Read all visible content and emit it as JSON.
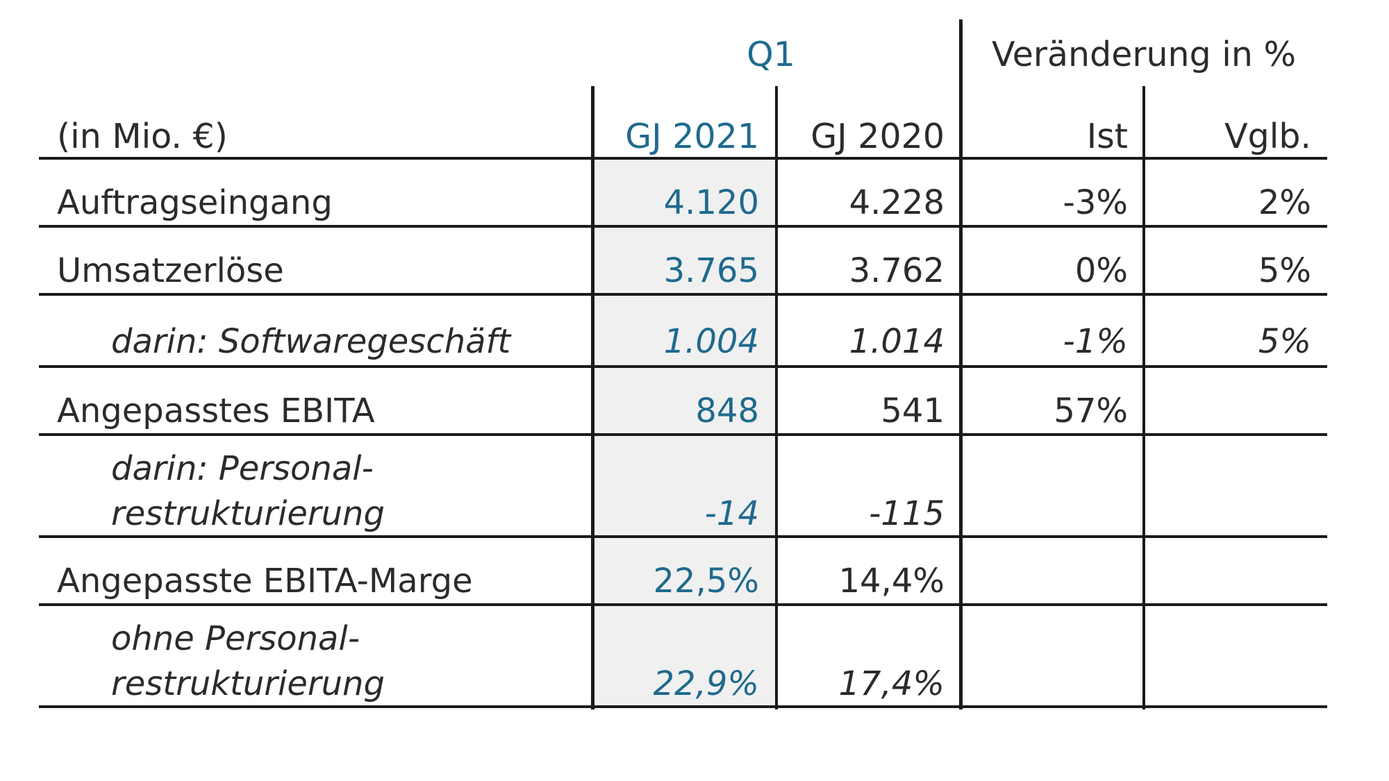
{
  "table": {
    "unit_label": "(in Mio. €)",
    "group_headers": {
      "period": "Q1",
      "change": "Veränderung in %"
    },
    "columns": {
      "fy2021": "GJ 2021",
      "fy2020": "GJ 2020",
      "actual": "Ist",
      "comparable": "Vglb."
    },
    "rows": [
      {
        "label": "Auftragseingang",
        "fy2021": "4.120",
        "fy2020": "4.228",
        "actual": "-3%",
        "comparable": "2%"
      },
      {
        "label": "Umsatzerlöse",
        "fy2021": "3.765",
        "fy2020": "3.762",
        "actual": "0%",
        "comparable": "5%"
      },
      {
        "label": "darin: Softwaregeschäft",
        "fy2021": "1.004",
        "fy2020": "1.014",
        "actual": "-1%",
        "comparable": "5%"
      },
      {
        "label": "Angepasstes EBITA",
        "fy2021": "848",
        "fy2020": "541",
        "actual": "57%",
        "comparable": ""
      },
      {
        "label_line1": "darin: Personal-",
        "label_line2": "restrukturierung",
        "fy2021": "-14",
        "fy2020": "-115",
        "actual": "",
        "comparable": ""
      },
      {
        "label": "Angepasste EBITA-Marge",
        "fy2021": "22,5%",
        "fy2020": "14,4%",
        "actual": "",
        "comparable": ""
      },
      {
        "label_line1": "ohne Personal-",
        "label_line2": "restrukturierung",
        "fy2021": "22,9%",
        "fy2020": "17,4%",
        "actual": "",
        "comparable": ""
      }
    ]
  },
  "colors": {
    "accent_blue": "#1f6a8e",
    "shade": "#f0f0f0",
    "rule": "#1a1a1a"
  }
}
